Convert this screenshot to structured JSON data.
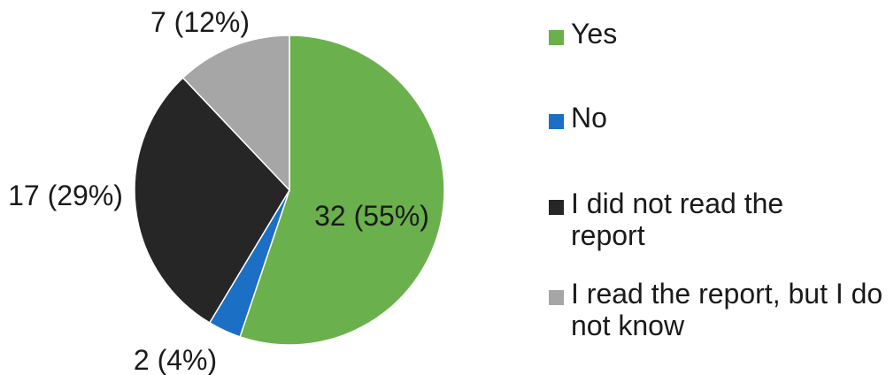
{
  "chart_data": {
    "type": "pie",
    "title": "",
    "slices": [
      {
        "label": "Yes",
        "value": 32,
        "percent": 55,
        "data_label": "32 (55%)",
        "color": "#6ab04c"
      },
      {
        "label": "No",
        "value": 2,
        "percent": 4,
        "data_label": "2 (4%)",
        "color": "#1b6fc4"
      },
      {
        "label": "I did not read the report",
        "value": 17,
        "percent": 29,
        "data_label": "17 (29%)",
        "color": "#262626"
      },
      {
        "label": "I read the report, but I do not know",
        "value": 7,
        "percent": 12,
        "data_label": "7 (12%)",
        "color": "#a6a6a6"
      }
    ],
    "start_angle": "top",
    "direction": "clockwise",
    "legend_position": "right"
  }
}
